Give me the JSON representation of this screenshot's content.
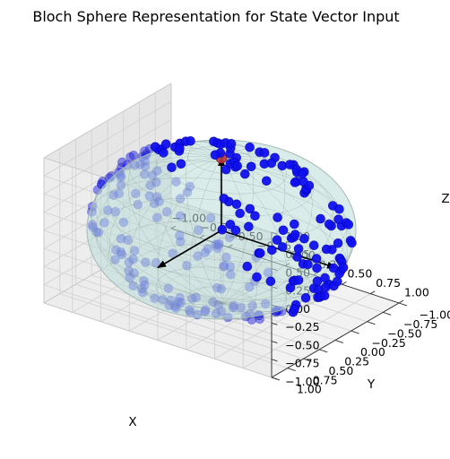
{
  "chart_data": {
    "type": "scatter3d",
    "title": "Bloch Sphere Representation for State Vector Input",
    "xlabel": "X",
    "ylabel": "Y",
    "zlabel": "Z",
    "xlim": [
      -1.0,
      1.0
    ],
    "ylim": [
      -1.0,
      1.0
    ],
    "zlim": [
      -1.0,
      1.0
    ],
    "x_ticks": [
      "−1.00",
      "−0.75",
      "−0.50",
      "−0.25",
      "0.00",
      "0.25",
      "0.50",
      "0.75",
      "1.00"
    ],
    "y_ticks": [
      "−1.00",
      "−0.75",
      "−0.50",
      "−0.25",
      "0.00",
      "0.25",
      "0.50",
      "0.75",
      "1.00"
    ],
    "z_ticks": [
      "−1.00",
      "−0.75",
      "−0.50",
      "−0.25",
      "0.00",
      "0.25",
      "0.50",
      "0.75",
      "1.00"
    ],
    "grid": true,
    "sphere": {
      "radius": 1.0,
      "color": "#b9ddd8",
      "wire_color": "#7f8f8c"
    },
    "state_vector": {
      "x": 0.0,
      "y": 0.0,
      "z": 1.0,
      "color": "#b83a3a"
    },
    "basis_arrows": [
      {
        "name": "x-axis-arrow",
        "x": 1,
        "y": 0,
        "z": 0,
        "color": "#000000"
      },
      {
        "name": "y-axis-arrow",
        "x": 0,
        "y": 1,
        "z": 0,
        "color": "#000000"
      },
      {
        "name": "z-axis-arrow",
        "x": 0,
        "y": 0,
        "z": 1,
        "color": "#000000"
      }
    ],
    "random_points": {
      "count": 260,
      "color": "#1010ee",
      "radius": 1.0,
      "distribution": "uniform on sphere surface"
    }
  }
}
